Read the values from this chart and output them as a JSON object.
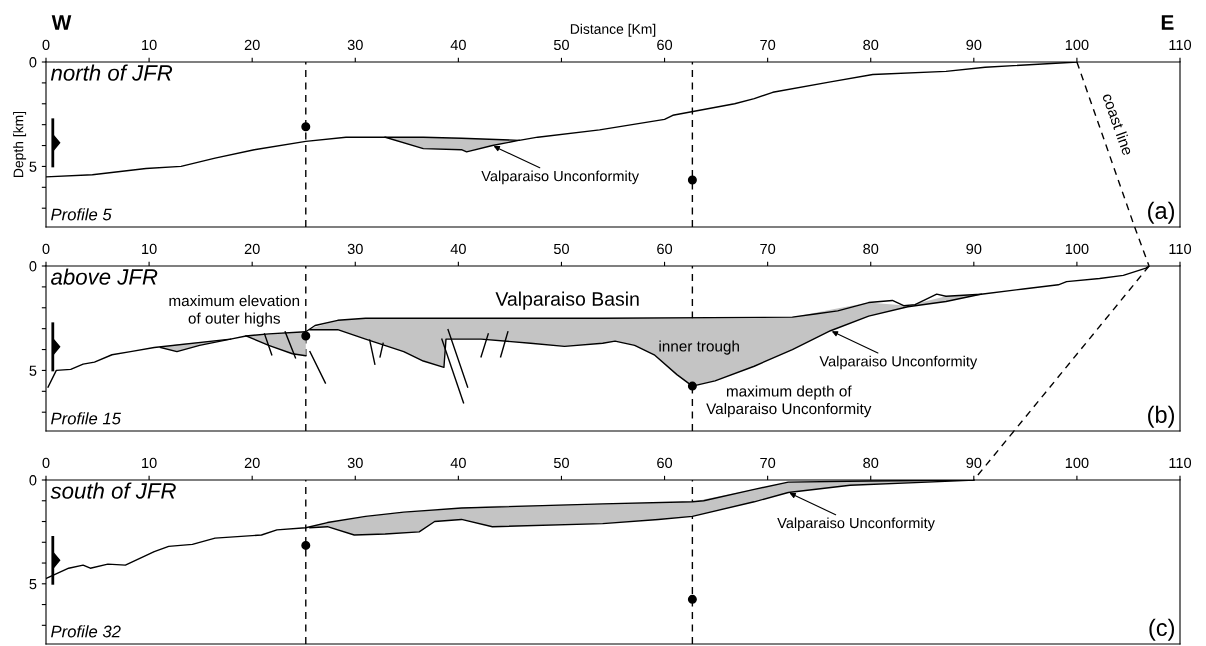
{
  "chart_data": [
    {
      "type": "line",
      "title": "north of JFR",
      "xlabel": "Distance [Km]",
      "ylabel": "Depth [km]",
      "xlim": [
        0,
        110
      ],
      "xticks": [
        0,
        10,
        20,
        30,
        40,
        50,
        60,
        70,
        80,
        90,
        100,
        110
      ],
      "ylim": [
        7.9,
        0
      ],
      "yticks": [
        0,
        {
          "value": 1,
          "label": null
        },
        {
          "value": 2,
          "label": null
        },
        {
          "value": 3,
          "label": null
        },
        {
          "value": 4,
          "label": null
        },
        5,
        {
          "value": 6,
          "label": null
        },
        {
          "value": 7,
          "label": null
        }
      ],
      "grid": false,
      "legend": false,
      "ref_lines": [
        {
          "axis": "x",
          "value": 25.2,
          "color": "#000000",
          "line_style": "dashed"
        },
        {
          "axis": "x",
          "value": 62.7,
          "color": "#000000",
          "line_style": "dashed"
        }
      ],
      "annotations": [
        "Profile 5",
        "(a)",
        "W",
        "E",
        "coast line",
        {
          "text": "Valparaiso Unconformity",
          "x": 43.3,
          "y": 4.0
        }
      ],
      "series": [
        {
          "color": "#000000",
          "x": [
            0,
            4.5,
            9.7,
            13.1,
            16.4,
            20.2,
            25.2,
            29.1,
            32.9,
            36.6,
            40.3,
            45.9,
            47.7,
            53.7,
            60,
            60.8,
            66.8,
            68.7,
            70.5,
            76.1,
            80.2,
            87.3,
            91.1,
            100
          ],
          "values": [
            5.5,
            5.4,
            5.1,
            5.0,
            4.6,
            4.2,
            3.8,
            3.6,
            3.6,
            3.6,
            3.65,
            3.75,
            3.6,
            3.25,
            2.75,
            2.55,
            2.0,
            1.75,
            1.45,
            0.95,
            0.6,
            0.45,
            0.25,
            0
          ]
        },
        {
          "color": "#000000",
          "line_style": "dashed",
          "x": [
            100,
            105.6
          ],
          "values": [
            0,
            7.9
          ]
        },
        {
          "color": "#000000",
          "x": [
            32.9,
            36.6,
            40.3,
            40.8,
            43.3,
            45.9
          ],
          "values": [
            3.6,
            4.15,
            4.2,
            4.3,
            4.0,
            3.75
          ],
          "lower": [
            3.6,
            3.6,
            3.65,
            3.65,
            3.7,
            3.75
          ],
          "upper": [
            3.6,
            4.15,
            4.2,
            4.3,
            4.0,
            3.75
          ]
        },
        {
          "type": "scatter",
          "color": "#000000",
          "marker": "circle",
          "x": [
            25.2,
            62.7
          ],
          "values": [
            3.1,
            5.65
          ]
        }
      ]
    },
    {
      "type": "line",
      "title": "above JFR",
      "xlim": [
        0,
        110
      ],
      "xticks": [
        0,
        10,
        20,
        30,
        40,
        50,
        60,
        70,
        80,
        90,
        100,
        110
      ],
      "ylim": [
        7.9,
        0
      ],
      "yticks": [
        0,
        {
          "value": 1,
          "label": null
        },
        {
          "value": 2,
          "label": null
        },
        {
          "value": 3,
          "label": null
        },
        {
          "value": 4,
          "label": null
        },
        5,
        {
          "value": 6,
          "label": null
        },
        {
          "value": 7,
          "label": null
        }
      ],
      "grid": false,
      "legend": false,
      "ref_lines": [
        {
          "axis": "x",
          "value": 25.2,
          "color": "#000000",
          "line_style": "dashed"
        },
        {
          "axis": "x",
          "value": 62.7,
          "color": "#000000",
          "line_style": "dashed"
        }
      ],
      "annotations": [
        "Profile 15",
        "(b)",
        "maximum elevation\nof outer highs",
        "Valparaiso Basin",
        "inner trough",
        "maximum depth of\nValparaiso Unconformity",
        {
          "text": "Valparaiso Unconformity",
          "x": 76.1,
          "y": 3.1
        }
      ],
      "series": [
        {
          "color": "#000000",
          "x": [
            0.2,
            1.0,
            2.4,
            3.6,
            4.7,
            6.4,
            8.2,
            10.5,
            17.9,
            19.4,
            21.6,
            25.2,
            26.1,
            28.3,
            31,
            54,
            72.4,
            74.6,
            76.8,
            79.8,
            82.1,
            83.2,
            84.3,
            86.4,
            87.3,
            90.7,
            94.8,
            98.2,
            99.0,
            102.2,
            104.5,
            106.7,
            107
          ],
          "values": [
            5.8,
            5.0,
            4.95,
            4.7,
            4.6,
            4.25,
            4.1,
            3.9,
            3.5,
            3.35,
            3.25,
            3.15,
            2.85,
            2.6,
            2.5,
            2.5,
            2.45,
            2.3,
            2.15,
            1.75,
            1.65,
            1.9,
            1.85,
            1.35,
            1.45,
            1.35,
            1.1,
            0.9,
            0.75,
            0.6,
            0.45,
            0.1,
            0
          ]
        },
        {
          "color": "#000000",
          "line_style": "dashed",
          "x": [
            107,
            93.9
          ],
          "values": [
            0,
            7.9
          ]
        },
        {
          "color": "#000000",
          "x": [
            11.1,
            12.7,
            14.9,
            17.9,
            18.6,
            19.4,
            21.6,
            23.9,
            25.2,
            25.4,
            25.6,
            28.3,
            31,
            34.7,
            36.6,
            38.6,
            38.8,
            42.2,
            47,
            50.3,
            54,
            55.2,
            57.1,
            59,
            61.2,
            62.7,
            64.9,
            68.7,
            72.4,
            76.1,
            79.8,
            83.6,
            87.3,
            90.7
          ],
          "values": [
            3.9,
            4.1,
            3.8,
            3.5,
            null,
            3.35,
            3.8,
            4.2,
            4.3,
            null,
            3.05,
            3.05,
            3.5,
            4.1,
            4.55,
            4.85,
            3.5,
            3.5,
            3.7,
            3.85,
            3.7,
            3.6,
            3.8,
            4.25,
            5.2,
            5.75,
            5.5,
            4.8,
            4.0,
            3.1,
            2.4,
            1.95,
            1.7,
            1.35
          ],
          "lower": [
            3.9,
            3.75,
            3.65,
            3.5,
            null,
            3.35,
            3.25,
            3.2,
            3.15,
            null,
            3.0,
            2.6,
            2.5,
            2.5,
            2.5,
            2.5,
            2.5,
            2.5,
            2.5,
            2.5,
            2.5,
            2.5,
            2.5,
            2.5,
            2.5,
            2.5,
            2.5,
            2.5,
            2.45,
            2.1,
            1.75,
            1.9,
            1.45,
            1.35
          ],
          "upper": [
            3.9,
            4.1,
            3.8,
            3.5,
            null,
            3.35,
            3.8,
            4.2,
            4.3,
            null,
            3.05,
            3.05,
            3.5,
            4.1,
            4.55,
            4.85,
            3.5,
            3.5,
            3.7,
            3.85,
            3.7,
            3.6,
            3.8,
            4.25,
            5.2,
            5.75,
            5.5,
            4.8,
            4.0,
            3.1,
            2.4,
            1.95,
            1.7,
            1.35
          ]
        },
        {
          "type": "line",
          "color": "#000000",
          "x": [
            21.2,
            21.9
          ],
          "values": [
            3.25,
            4.25
          ]
        },
        {
          "type": "line",
          "color": "#000000",
          "x": [
            23.2,
            24.2
          ],
          "values": [
            3.15,
            4.4
          ]
        },
        {
          "type": "line",
          "color": "#000000",
          "x": [
            25.6,
            27.1
          ],
          "values": [
            4.1,
            5.6
          ]
        },
        {
          "type": "line",
          "color": "#000000",
          "x": [
            31.4,
            31.9
          ],
          "values": [
            3.55,
            4.7
          ]
        },
        {
          "type": "line",
          "color": "#000000",
          "x": [
            32.7,
            32.4
          ],
          "values": [
            3.7,
            4.35
          ]
        },
        {
          "type": "line",
          "color": "#000000",
          "x": [
            38.4,
            40.5
          ],
          "values": [
            3.5,
            6.55
          ]
        },
        {
          "type": "line",
          "color": "#000000",
          "x": [
            39.0,
            40.9
          ],
          "values": [
            3.05,
            5.8
          ]
        },
        {
          "type": "line",
          "color": "#000000",
          "x": [
            42.9,
            42.2
          ],
          "values": [
            3.25,
            4.35
          ]
        },
        {
          "type": "line",
          "color": "#000000",
          "x": [
            44.8,
            44.1
          ],
          "values": [
            3.15,
            4.35
          ]
        },
        {
          "type": "scatter",
          "color": "#000000",
          "marker": "circle",
          "x": [
            25.2,
            62.7
          ],
          "values": [
            3.35,
            5.75
          ]
        }
      ]
    },
    {
      "type": "line",
      "title": "south of JFR",
      "xlim": [
        0,
        110
      ],
      "xticks": [
        0,
        10,
        20,
        30,
        40,
        50,
        60,
        70,
        80,
        90,
        100,
        110
      ],
      "ylim": [
        7.9,
        0
      ],
      "yticks": [
        0,
        {
          "value": 1,
          "label": null
        },
        {
          "value": 2,
          "label": null
        },
        {
          "value": 3,
          "label": null
        },
        {
          "value": 4,
          "label": null
        },
        5,
        {
          "value": 6,
          "label": null
        },
        {
          "value": 7,
          "label": null
        }
      ],
      "grid": false,
      "legend": false,
      "ref_lines": [
        {
          "axis": "x",
          "value": 25.2,
          "color": "#000000",
          "line_style": "dashed"
        },
        {
          "axis": "x",
          "value": 62.7,
          "color": "#000000",
          "line_style": "dashed"
        }
      ],
      "annotations": [
        "Profile 32",
        "(c)",
        {
          "text": "Valparaiso Unconformity",
          "x": 72,
          "y": 0.6
        }
      ],
      "series": [
        {
          "color": "#000000",
          "x": [
            0,
            2.2,
            3.6,
            4.3,
            6,
            7.7,
            10.5,
            11.9,
            14.2,
            16.4,
            20.9,
            22.4,
            25.2,
            27.3,
            31,
            34.7,
            40.3,
            54,
            62.7,
            63.8,
            68.7,
            72,
            79.8,
            90
          ],
          "values": [
            4.75,
            4.25,
            4.1,
            4.25,
            4.05,
            4.1,
            3.45,
            3.2,
            3.1,
            2.8,
            2.65,
            2.4,
            2.3,
            2.05,
            1.75,
            1.55,
            1.35,
            1.15,
            1.05,
            1.0,
            0.45,
            0.1,
            0.05,
            0
          ]
        },
        {
          "color": "#000000",
          "x": [
            25.6,
            27.3,
            29.9,
            32.9,
            36.2,
            37.7,
            40.3,
            43.3,
            54,
            59.4,
            62.7,
            68.7,
            72,
            78,
            85.5,
            90
          ],
          "values": [
            2.3,
            2.25,
            2.65,
            2.6,
            2.5,
            2.0,
            1.9,
            2.25,
            2.1,
            1.9,
            1.75,
            1.05,
            0.6,
            0.25,
            0.1,
            0
          ],
          "lower": [
            2.25,
            2.05,
            1.85,
            1.65,
            1.5,
            1.45,
            1.35,
            1.25,
            1.15,
            1.1,
            1.05,
            0.45,
            0.1,
            0.05,
            0.02,
            0
          ],
          "upper": [
            2.3,
            2.25,
            2.65,
            2.6,
            2.5,
            2.0,
            1.9,
            2.25,
            2.1,
            1.9,
            1.75,
            1.05,
            0.6,
            0.25,
            0.1,
            0
          ]
        },
        {
          "type": "scatter",
          "color": "#000000",
          "marker": "circle",
          "x": [
            25.2,
            62.7
          ],
          "values": [
            3.15,
            5.75
          ]
        }
      ]
    }
  ]
}
